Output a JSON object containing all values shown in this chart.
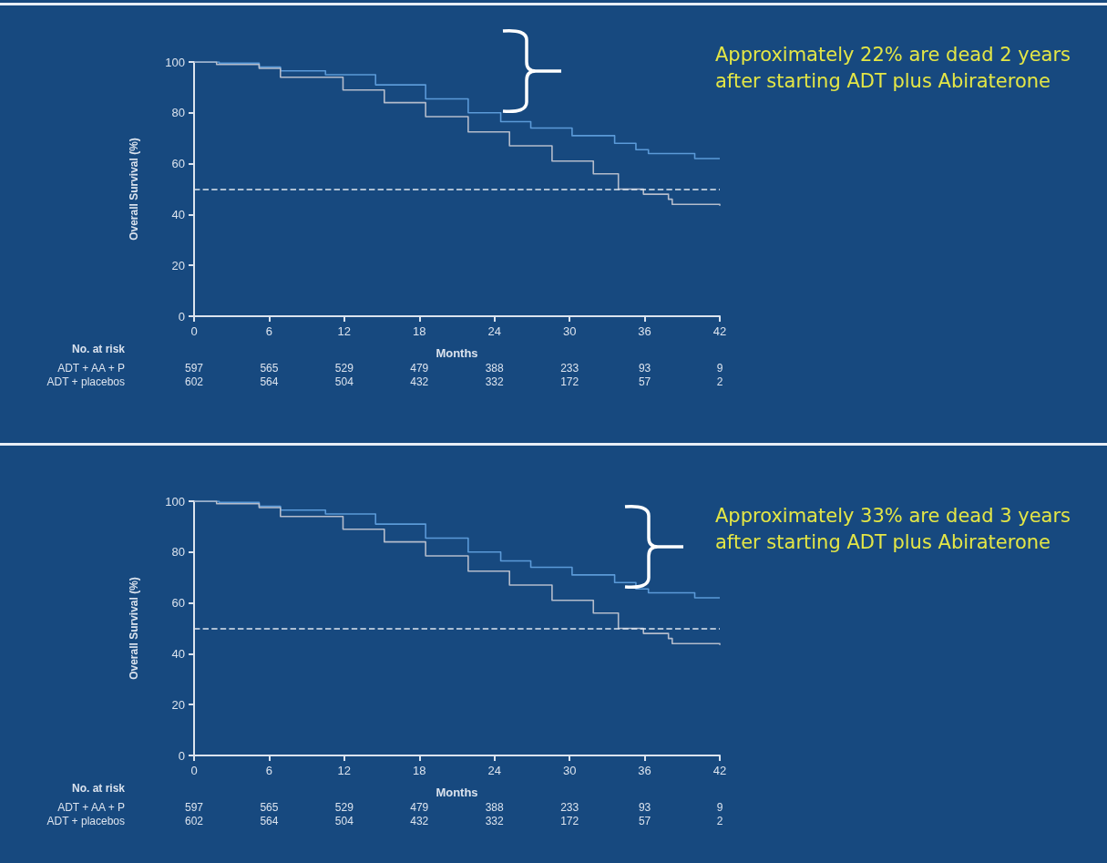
{
  "chart_data": [
    {
      "type": "step",
      "xlabel": "Months",
      "ylabel": "Overall Survival (%)",
      "series": [
        {
          "color": "#5b9ad8",
          "x": [
            0,
            2,
            5.2,
            6.9,
            10.5,
            14.5,
            18.5,
            21.9,
            24.5,
            26.9,
            30.2,
            33.6,
            35.3,
            36.3,
            40,
            42
          ],
          "values": [
            100,
            99.5,
            98,
            96.5,
            95,
            91,
            85.5,
            80,
            76.5,
            74,
            71,
            68,
            65.5,
            64,
            62,
            62
          ]
        },
        {
          "color": "#b4bccb",
          "x": [
            0,
            1.8,
            5.2,
            6.9,
            11.9,
            15.2,
            18.5,
            21.9,
            25.2,
            28.6,
            31.9,
            33.9,
            35.9,
            37.9,
            38.2,
            42
          ],
          "values": [
            100,
            99,
            97.5,
            94,
            89,
            84,
            78.5,
            72.5,
            67,
            61,
            56,
            50,
            48,
            46,
            44,
            43.5
          ]
        }
      ],
      "xlim": [
        0,
        42
      ],
      "xticks": [
        0,
        6,
        12,
        18,
        24,
        30,
        36,
        42
      ],
      "ylim": [
        0,
        100
      ],
      "yticks": [
        0,
        20,
        40,
        60,
        80,
        100
      ],
      "grid": false,
      "marker": "none",
      "line_style": "solid",
      "ref_lines": [
        {
          "axis": "y",
          "value": 50,
          "label": null,
          "color": "#dfe6f0",
          "line_style": "dashed"
        }
      ],
      "annotations": [
        "Approximately 22% are dead 2 years after starting ADT plus Abiraterone",
        "No. at risk",
        "ADT + AA + P",
        "597",
        "565",
        "529",
        "479",
        "388",
        "233",
        "93",
        "9",
        "ADT + placebos",
        "602",
        "564",
        "504",
        "432",
        "332",
        "172",
        "57",
        "2"
      ]
    },
    {
      "type": "step",
      "xlabel": "Months",
      "ylabel": "Overall Survival (%)",
      "series": [
        {
          "color": "#5b9ad8",
          "x": [
            0,
            2,
            5.2,
            6.9,
            10.5,
            14.5,
            18.5,
            21.9,
            24.5,
            26.9,
            30.2,
            33.6,
            35.3,
            36.3,
            40,
            42
          ],
          "values": [
            100,
            99.5,
            98,
            96.5,
            95,
            91,
            85.5,
            80,
            76.5,
            74,
            71,
            68,
            65.5,
            64,
            62,
            62
          ]
        },
        {
          "color": "#b4bccb",
          "x": [
            0,
            1.8,
            5.2,
            6.9,
            11.9,
            15.2,
            18.5,
            21.9,
            25.2,
            28.6,
            31.9,
            33.9,
            35.9,
            37.9,
            38.2,
            42
          ],
          "values": [
            100,
            99,
            97.5,
            94,
            89,
            84,
            78.5,
            72.5,
            67,
            61,
            56,
            50,
            48,
            46,
            44,
            43.5
          ]
        }
      ],
      "xlim": [
        0,
        42
      ],
      "xticks": [
        0,
        6,
        12,
        18,
        24,
        30,
        36,
        42
      ],
      "ylim": [
        0,
        100
      ],
      "yticks": [
        0,
        20,
        40,
        60,
        80,
        100
      ],
      "grid": false,
      "marker": "none",
      "line_style": "solid",
      "ref_lines": [
        {
          "axis": "y",
          "value": 50,
          "label": null,
          "color": "#dfe6f0",
          "line_style": "dashed"
        }
      ],
      "annotations": [
        "Approximately 33% are dead 3 years after starting ADT plus Abiraterone",
        "No. at risk",
        "ADT + AA + P",
        "597",
        "565",
        "529",
        "479",
        "388",
        "233",
        "93",
        "9",
        "ADT + placebos",
        "602",
        "564",
        "504",
        "432",
        "332",
        "172",
        "57",
        "2"
      ]
    }
  ]
}
